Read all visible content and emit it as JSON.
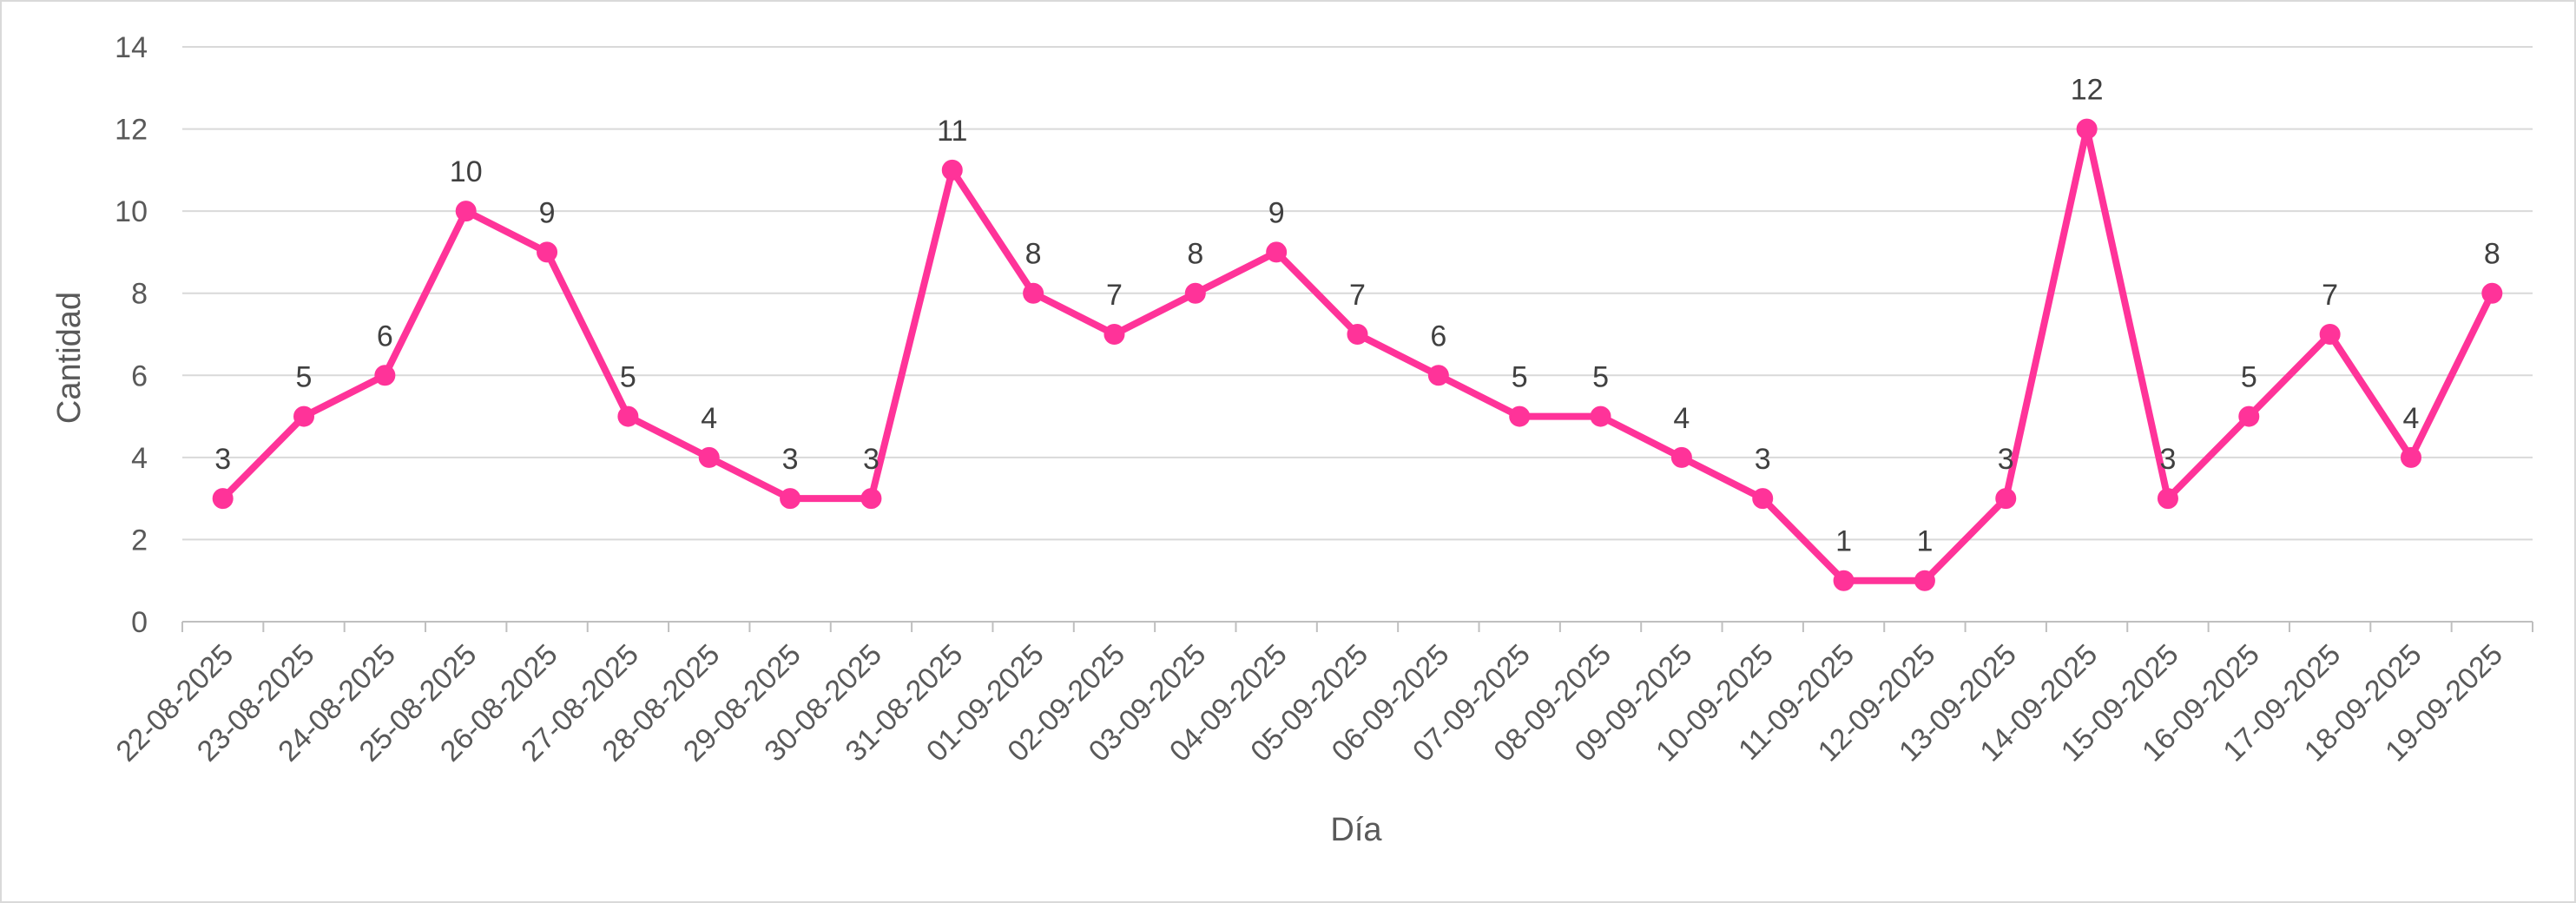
{
  "chart_data": {
    "type": "line",
    "title": "",
    "xlabel": "Día",
    "ylabel": "Cantidad",
    "ylim": [
      0,
      14
    ],
    "y_ticks": [
      "0",
      "2",
      "4",
      "6",
      "8",
      "10",
      "12",
      "14"
    ],
    "grid": true,
    "legend": "none",
    "markers": true,
    "data_labels": true,
    "line_color": "#ff3399",
    "categories": [
      "22-08-2025",
      "23-08-2025",
      "24-08-2025",
      "25-08-2025",
      "26-08-2025",
      "27-08-2025",
      "28-08-2025",
      "29-08-2025",
      "30-08-2025",
      "31-08-2025",
      "01-09-2025",
      "02-09-2025",
      "03-09-2025",
      "04-09-2025",
      "05-09-2025",
      "06-09-2025",
      "07-09-2025",
      "08-09-2025",
      "09-09-2025",
      "10-09-2025",
      "11-09-2025",
      "12-09-2025",
      "13-09-2025",
      "14-09-2025",
      "15-09-2025",
      "16-09-2025",
      "17-09-2025",
      "18-09-2025",
      "19-09-2025"
    ],
    "series": [
      {
        "values": [
          3,
          5,
          6,
          10,
          9,
          5,
          4,
          3,
          3,
          11,
          8,
          7,
          8,
          9,
          7,
          6,
          5,
          5,
          4,
          3,
          1,
          1,
          3,
          12,
          3,
          5,
          7,
          4,
          8
        ]
      }
    ]
  }
}
